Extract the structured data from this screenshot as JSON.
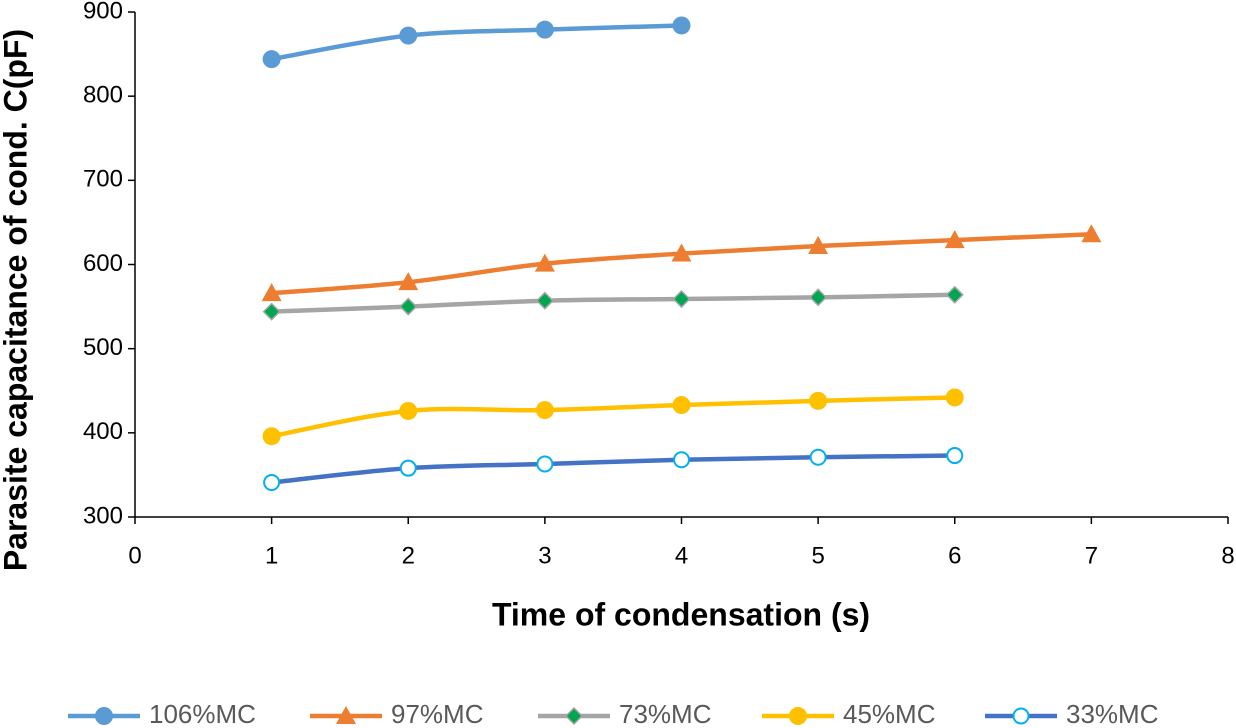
{
  "chart_data": {
    "type": "line",
    "x_label": "Time of condensation (s)",
    "y_label": "Parasite capacitance of cond. C(pF)",
    "xlim": [
      0,
      8
    ],
    "xticks": [
      0,
      1,
      2,
      3,
      4,
      5,
      6,
      7,
      8
    ],
    "ylim": [
      300,
      900
    ],
    "yticks": [
      300,
      400,
      500,
      600,
      700,
      800,
      900
    ],
    "grid": false,
    "legend": "bottom",
    "series": [
      {
        "name": "106%MC",
        "color": "#5b9bd5",
        "marker": "circle",
        "marker_color": "#5b9bd5",
        "x": [
          1,
          2,
          3,
          4
        ],
        "values": [
          844,
          872,
          879,
          884
        ]
      },
      {
        "name": "97%MC",
        "color": "#ed7d31",
        "marker": "triangle",
        "marker_color": "#ed7d31",
        "x": [
          1,
          2,
          3,
          4,
          5,
          6,
          7
        ],
        "values": [
          566,
          579,
          601,
          613,
          622,
          629,
          636
        ]
      },
      {
        "name": "73%MC",
        "color": "#a5a5a5",
        "marker": "diamond",
        "marker_color": "#00a650",
        "x": [
          1,
          2,
          3,
          4,
          5,
          6
        ],
        "values": [
          544,
          550,
          557,
          559,
          561,
          564
        ]
      },
      {
        "name": "45%MC",
        "color": "#ffc000",
        "marker": "circle",
        "marker_color": "#ffc000",
        "x": [
          1,
          2,
          3,
          4,
          5,
          6
        ],
        "values": [
          396,
          426,
          427,
          433,
          438,
          442
        ]
      },
      {
        "name": "33%MC",
        "color": "#4472c4",
        "marker": "hollow-circle",
        "marker_color": "#00b0f0",
        "x": [
          1,
          2,
          3,
          4,
          5,
          6
        ],
        "values": [
          341,
          358,
          363,
          368,
          371,
          373
        ]
      }
    ]
  }
}
